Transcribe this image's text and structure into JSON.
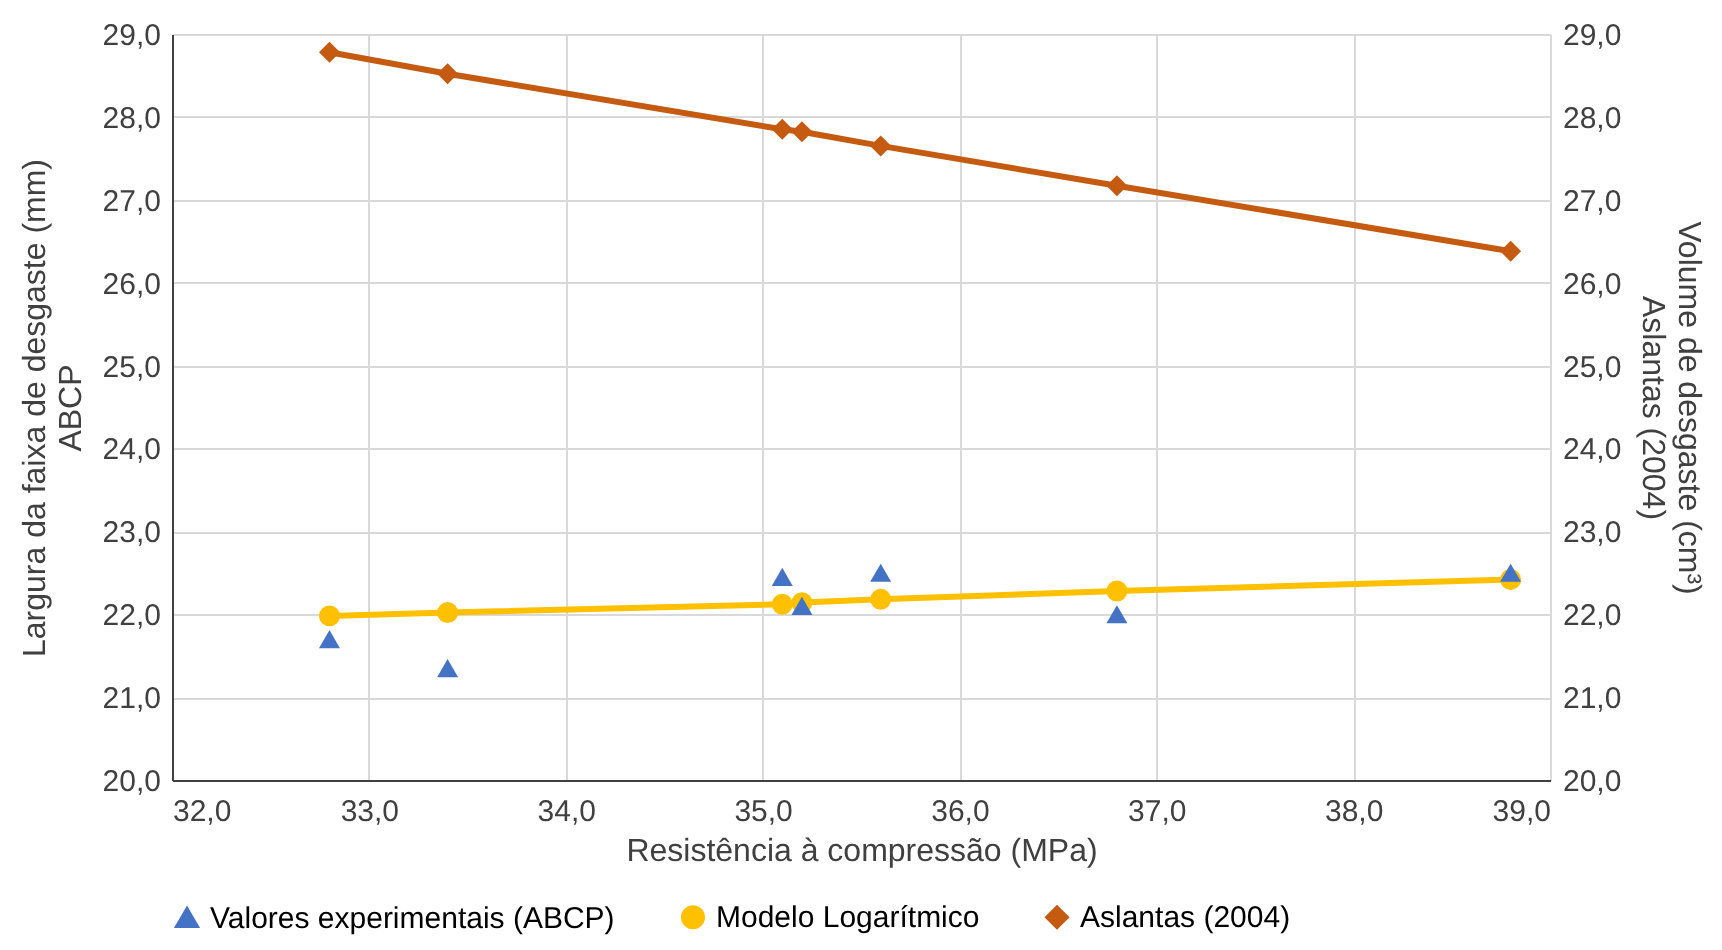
{
  "chart_data": {
    "type": "scatter",
    "xlabel": "Resistência à compressão (MPa)",
    "ylabel": "Largura da faixa de desgaste (mm)\nABCP",
    "y2label": "Volume de desgaste (cm³)\nAslantas (2004)",
    "x": [
      32.8,
      33.4,
      35.1,
      35.2,
      35.6,
      36.8,
      38.8
    ],
    "series": [
      {
        "name": "Valores experimentais (ABCP)",
        "marker": "triangle",
        "color": "#4472c4",
        "values": [
          21.7,
          21.35,
          22.45,
          22.1,
          22.5,
          22.0,
          22.5
        ]
      },
      {
        "name": "Modelo Logarítmico",
        "type": "line",
        "marker": "circle",
        "color": "#ffc000",
        "values": [
          21.98,
          22.02,
          22.12,
          22.14,
          22.18,
          22.28,
          22.42
        ]
      },
      {
        "name": "Aslantas (2004)",
        "type": "line",
        "marker": "diamond",
        "axis": "y2",
        "color": "#c55a11",
        "values": [
          28.78,
          28.52,
          27.85,
          27.82,
          27.65,
          27.17,
          26.38
        ]
      }
    ],
    "xlim": [
      32,
      39
    ],
    "xticks": [
      {
        "value": 32,
        "label": "32,0"
      },
      {
        "value": 33,
        "label": "33,0"
      },
      {
        "value": 34,
        "label": "34,0"
      },
      {
        "value": 35,
        "label": "35,0"
      },
      {
        "value": 36,
        "label": "36,0"
      },
      {
        "value": 37,
        "label": "37,0"
      },
      {
        "value": 38,
        "label": "38,0"
      },
      {
        "value": 39,
        "label": "39,0"
      }
    ],
    "ylim": [
      20,
      29
    ],
    "yticks": [
      {
        "value": 20,
        "label": "20,0"
      },
      {
        "value": 21,
        "label": "21,0"
      },
      {
        "value": 22,
        "label": "22,0"
      },
      {
        "value": 23,
        "label": "23,0"
      },
      {
        "value": 24,
        "label": "24,0"
      },
      {
        "value": 25,
        "label": "25,0"
      },
      {
        "value": 26,
        "label": "26,0"
      },
      {
        "value": 27,
        "label": "27,0"
      },
      {
        "value": 28,
        "label": "28,0"
      },
      {
        "value": 29,
        "label": "29,0"
      }
    ],
    "y2lim": [
      20,
      29
    ],
    "y2ticks": [
      {
        "value": 20,
        "label": "20,0"
      },
      {
        "value": 21,
        "label": "21,0"
      },
      {
        "value": 22,
        "label": "22,0"
      },
      {
        "value": 23,
        "label": "23,0"
      },
      {
        "value": 24,
        "label": "24,0"
      },
      {
        "value": 25,
        "label": "25,0"
      },
      {
        "value": 26,
        "label": "26,0"
      },
      {
        "value": 27,
        "label": "27,0"
      },
      {
        "value": 28,
        "label": "28,0"
      },
      {
        "value": 29,
        "label": "29,0"
      }
    ],
    "grid": true,
    "legend": "bottom"
  }
}
